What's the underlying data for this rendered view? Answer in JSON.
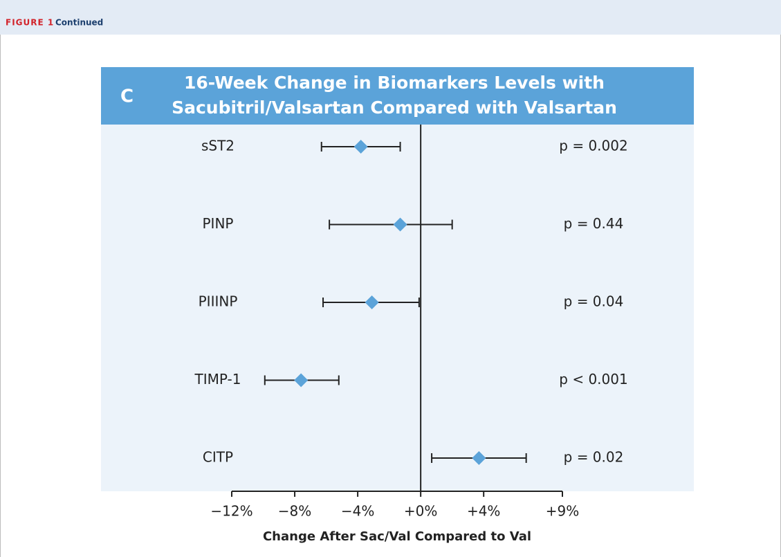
{
  "figure_label": "FIGURE 1",
  "figure_status": "Continued",
  "chart_data": {
    "type": "forest",
    "panel": "C",
    "title": [
      "16-Week Change in Biomarkers Levels with",
      "Sacubitril/Valsartan Compared with Valsartan"
    ],
    "x_label": "Change After Sac/Val Compared to Val",
    "categories": [
      "sST2",
      "PINP",
      "PIIINP",
      "TIMP-1",
      "CITP"
    ],
    "series": [
      {
        "color": "#5ba3d9",
        "values": [
          -3.8,
          -1.3,
          -3.1,
          -7.6,
          3.7
        ],
        "lower": [
          -6.3,
          -5.8,
          -6.2,
          -9.9,
          0.7
        ],
        "upper": [
          -1.3,
          2.0,
          -0.1,
          -5.2,
          6.7
        ]
      }
    ],
    "annotations": [
      "p = 0.002",
      "p = 0.44",
      "p = 0.04",
      "p < 0.001",
      "p = 0.02"
    ],
    "xlim": [
      -12,
      9
    ],
    "xticks": [
      {
        "value": -12,
        "label": "−12%"
      },
      {
        "value": -8,
        "label": "−8%"
      },
      {
        "value": -4,
        "label": "−4%"
      },
      {
        "value": 0,
        "label": "+0%"
      },
      {
        "value": 4,
        "label": "+4%"
      },
      {
        "value": 9,
        "label": "+9%"
      }
    ]
  }
}
